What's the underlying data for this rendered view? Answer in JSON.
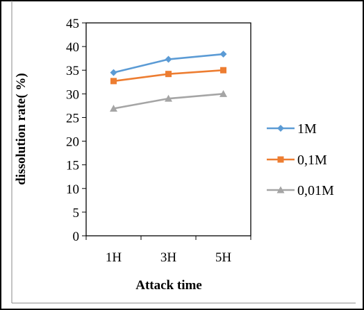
{
  "chart_data": {
    "type": "line",
    "title": "",
    "xlabel": "Attack time",
    "ylabel": "dissolution rate( %)",
    "categories": [
      "1H",
      "3H",
      "5H"
    ],
    "ylim": [
      0,
      45
    ],
    "yticks": [
      "0",
      "5",
      "10",
      "15",
      "20",
      "25",
      "30",
      "35",
      "40",
      "45"
    ],
    "grid": false,
    "legend_position": "right",
    "series": [
      {
        "name": "1M",
        "values": [
          34.5,
          37.3,
          38.4
        ],
        "color": "#5B9BD5",
        "marker": "diamond"
      },
      {
        "name": "0,1M",
        "values": [
          32.7,
          34.2,
          35.0
        ],
        "color": "#ED7D31",
        "marker": "square"
      },
      {
        "name": "0,01M",
        "values": [
          26.9,
          29.0,
          30.0
        ],
        "color": "#A5A5A5",
        "marker": "triangle"
      }
    ]
  }
}
